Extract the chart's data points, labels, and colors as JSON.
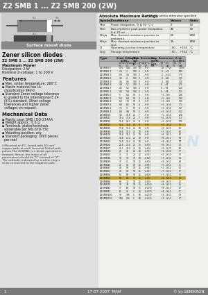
{
  "title": "Z2 SMB 1 ... Z2 SMB 200 (2W)",
  "subtitle": "Zener silicon diodes",
  "bg_color": "#d8d8d8",
  "title_bar_color": "#787878",
  "left_bg": "#e0e0e0",
  "right_bg": "#f0f0ee",
  "footer_bg": "#787878",
  "footer_text": "1          17-07-2007  MAM          © by SEMIKRON",
  "abs_max_title": "Absolute Maximum Ratings",
  "abs_max_condition": "Tₕ = 25 °C, unless otherwise specified",
  "abs_max_headers": [
    "Symbol",
    "Conditions",
    "Values",
    "Units"
  ],
  "abs_max_rows": [
    [
      "Ptot",
      "Power dissipation, Tj ≤ 90 °C ‡",
      "2",
      "W"
    ],
    [
      "Pzm",
      "Non repetitive peak power dissipation,\nδ ≤ 10 ms",
      "40",
      "W"
    ],
    [
      "Rthja",
      "Max. thermal resistance junction to\nambient ‡",
      "60",
      "K/W"
    ],
    [
      "Rthjc",
      "Max. thermal resistance junction to\ncase",
      "15",
      "K/W"
    ],
    [
      "Tj",
      "Operating junction temperature",
      "-50 ... +150",
      "°C"
    ],
    [
      "Tstg",
      "Storage temperature",
      "-50 ... +150",
      "°C"
    ]
  ],
  "features_title": "Features",
  "features": [
    "Max. solder temperature: 260°C",
    "Plastic material has UL classification 94V-0",
    "Standard Zener voltage tolerance is graded to the international E 24 (5%) standard. Other voltage tolerances and higher Zener voltages on request."
  ],
  "mech_title": "Mechanical Data",
  "mech_items": [
    "Plastic case: SMB / DO-214AA",
    "Weight approx.: 0.1 g",
    "Terminals: plated terminals solderable per MIL-STD-750",
    "Mounting position: any",
    "Standard packaging: 3000 pieces per reel"
  ],
  "note_text": "‡ Mounted on P.C. board with 50 mm² copper pads at each terminal.Tested with pulses.The Z2SMB1 is a diode operated in forward. Hence, the index of all parameters should be \"F\" instead of \"Z\". The cathode, indicated by a white ring is to be connected to the negative pole.",
  "table_rows": [
    [
      "Z2SMB1*)",
      "0.71",
      "0.82",
      "100",
      "0.5",
      "(+1)",
      "-26 ...+16",
      "-",
      "1,000"
    ],
    [
      "Z2SMB2.7",
      "2.4",
      "3",
      "100",
      "2",
      "(+5)",
      "-1 ...+8",
      "-",
      "600"
    ],
    [
      "Z2SMB3.3",
      "2.8",
      "3.4",
      "100",
      "2",
      "(+5)",
      "-2 ...+4.5",
      "-",
      "370"
    ],
    [
      "Z2SMB3.6",
      "3.2",
      "4",
      "100",
      "3",
      "(+5)",
      "-3 ...+5",
      "3",
      "335"
    ],
    [
      "Z2SMB3.9",
      "3.6",
      "4.6",
      "100",
      "3",
      "(+5)",
      "-1 ...+8",
      "1",
      "300"
    ],
    [
      "Z2SMB4.3",
      "3.9",
      "5.2",
      "100",
      "3",
      "(+5)",
      "0 ...+7",
      "1",
      "275"
    ],
    [
      "Z2SMB4.7",
      "4.2",
      "5.2",
      "100",
      "3",
      "(+5)",
      "0 ...+7",
      "1",
      "260"
    ],
    [
      "Z2SMB5.1",
      "4.6",
      "5.8",
      "100",
      "3",
      "(+5)",
      "0 ...+7",
      "1",
      "255"
    ],
    [
      "Z2SMB5.6",
      "5",
      "6.4",
      "50",
      "3",
      "(+6)",
      "+3 ...+8",
      "1",
      "208"
    ],
    [
      "Z2SMB6.2",
      "5.6",
      "6.8",
      "50",
      "3",
      "(+6)",
      "+3 ...+8",
      "1",
      "190"
    ],
    [
      "Z2SMB6.8",
      "6.2",
      "7.4",
      "50",
      "4",
      "(+5)",
      "+3 ...+8",
      "1",
      "180"
    ],
    [
      "Z2SMB7.5",
      "6.8",
      "8.2",
      "50",
      "4",
      "(+5)",
      "+5 ...+10",
      "1",
      "172"
    ],
    [
      "Z2SMB8.2",
      "7.5",
      "9",
      "50",
      "4",
      "(+5)",
      "+5 ...+10",
      "1",
      "167"
    ],
    [
      "Z2SMB9.1",
      "8.4",
      "9.8",
      "50",
      "5",
      "(+5)",
      "+5 ...+10",
      "1",
      "162"
    ],
    [
      "Z2SMB10",
      "9.2",
      "10.8",
      "25",
      "7",
      "(+5)",
      "+5 ...+10",
      "1",
      "128"
    ],
    [
      "Z2SMB11",
      "10.4",
      "11.6",
      "25",
      "7",
      "(+5)",
      "+5 ...+10",
      "1",
      "117"
    ],
    [
      "Z2SMB12",
      "11.4",
      "12.7",
      "25",
      "8",
      "(+5)",
      "+5 ...+10",
      "1",
      "105"
    ],
    [
      "Z2SMB13",
      "12.4",
      "14.1",
      "25",
      "8",
      "(+5)",
      "+5 ...+10",
      "1",
      "95"
    ],
    [
      "Z2SMB15",
      "13.8",
      "15.6",
      "25",
      "10",
      "(+5)",
      "+6 ...+11",
      "1",
      "80"
    ],
    [
      "Z2SMB16",
      "14.8",
      "16.1",
      "25",
      "10",
      "(+5)",
      "+7 ...+11",
      "1",
      "88"
    ],
    [
      "Z2SMB18",
      "16.8",
      "19.1",
      "25",
      "10",
      "(+5)",
      "+8 ...+11",
      "1",
      "80"
    ],
    [
      "Z2SMB20",
      "18.8",
      "21.2",
      "25",
      "10",
      "(+5)",
      "+8 ...+11",
      "1",
      "58"
    ],
    [
      "Z2SMB22",
      "20.8",
      "23.3",
      "25",
      "10",
      "(+5)",
      "+8 ...+11",
      "1",
      "58"
    ],
    [
      "Z2SMB24",
      "22.8",
      "25.6",
      "25",
      "15",
      "(>60)",
      "+8 ...+11",
      "1",
      "53"
    ],
    [
      "Z2SMB27",
      "25.1",
      "28.9",
      "25",
      "20",
      "(>60)",
      "+9 ...+11",
      "1",
      "60"
    ],
    [
      "Z2SMB30",
      "28",
      "32",
      "25",
      "20",
      "(>75)",
      "+9 ...+11",
      "1",
      "57"
    ],
    [
      "Z2SMB33",
      "31",
      "35",
      "25",
      "20",
      "(>75)",
      "+9 ...+11",
      "1",
      "57"
    ],
    [
      "Z2SMB36",
      "34",
      "38",
      "10",
      "50",
      "(>60)",
      "+9 ...+11",
      "1",
      "53"
    ],
    [
      "Z2SMB39",
      "37",
      "41",
      "10",
      "25",
      "(>60)",
      "+9 ...+11",
      "1",
      "49"
    ],
    [
      "Z2SMB43",
      "40",
      "46",
      "10",
      "25",
      "(>65)",
      "+7 ...+12",
      "1",
      "45"
    ],
    [
      "Z2SMB47",
      "44",
      "50",
      "10",
      "25",
      "(>65)",
      "+7 ...+12",
      "1",
      "40"
    ],
    [
      "Z2SMB51",
      "48",
      "54",
      "10",
      "25",
      "(>65)",
      "+7 ...+12",
      "1",
      "37"
    ],
    [
      "Z2SMB56",
      "52",
      "60",
      "10",
      "25",
      "(>60)",
      "+7 ...+12",
      "1",
      "33"
    ],
    [
      "Z2SMB62",
      "58",
      "66",
      "10",
      "25",
      "(>60)",
      "+8 ...+13",
      "1",
      "30"
    ],
    [
      "Z2SMB68",
      "64",
      "72",
      "10",
      "25",
      "(>60)",
      "+8 ...+13",
      "1",
      "28"
    ],
    [
      "Z2SMB75",
      "70",
      "78",
      "10",
      "35",
      "(>100)",
      "+8 ...+13",
      "1",
      "26"
    ],
    [
      "Z2SMB82",
      "77",
      "88",
      "10",
      "35",
      "(>100)",
      "+8 ...+13",
      "1",
      "23"
    ],
    [
      "Z2SMB91",
      "85",
      "96",
      "5",
      "40",
      "(>200)",
      "+8 ...+13",
      "1",
      "21"
    ],
    [
      "Z2SMB100",
      "94",
      "106",
      "5",
      "60",
      "(>200)",
      "+9 ...+13",
      "1",
      "19"
    ],
    [
      "Z2SMB110",
      "104",
      "116",
      "5",
      "60",
      "(>200)",
      "+9 ...+13",
      "1",
      "17"
    ]
  ],
  "highlight_rows": [
    17,
    33
  ],
  "watermark": "SEMIKRON",
  "watermark_color": "#c8dce8"
}
